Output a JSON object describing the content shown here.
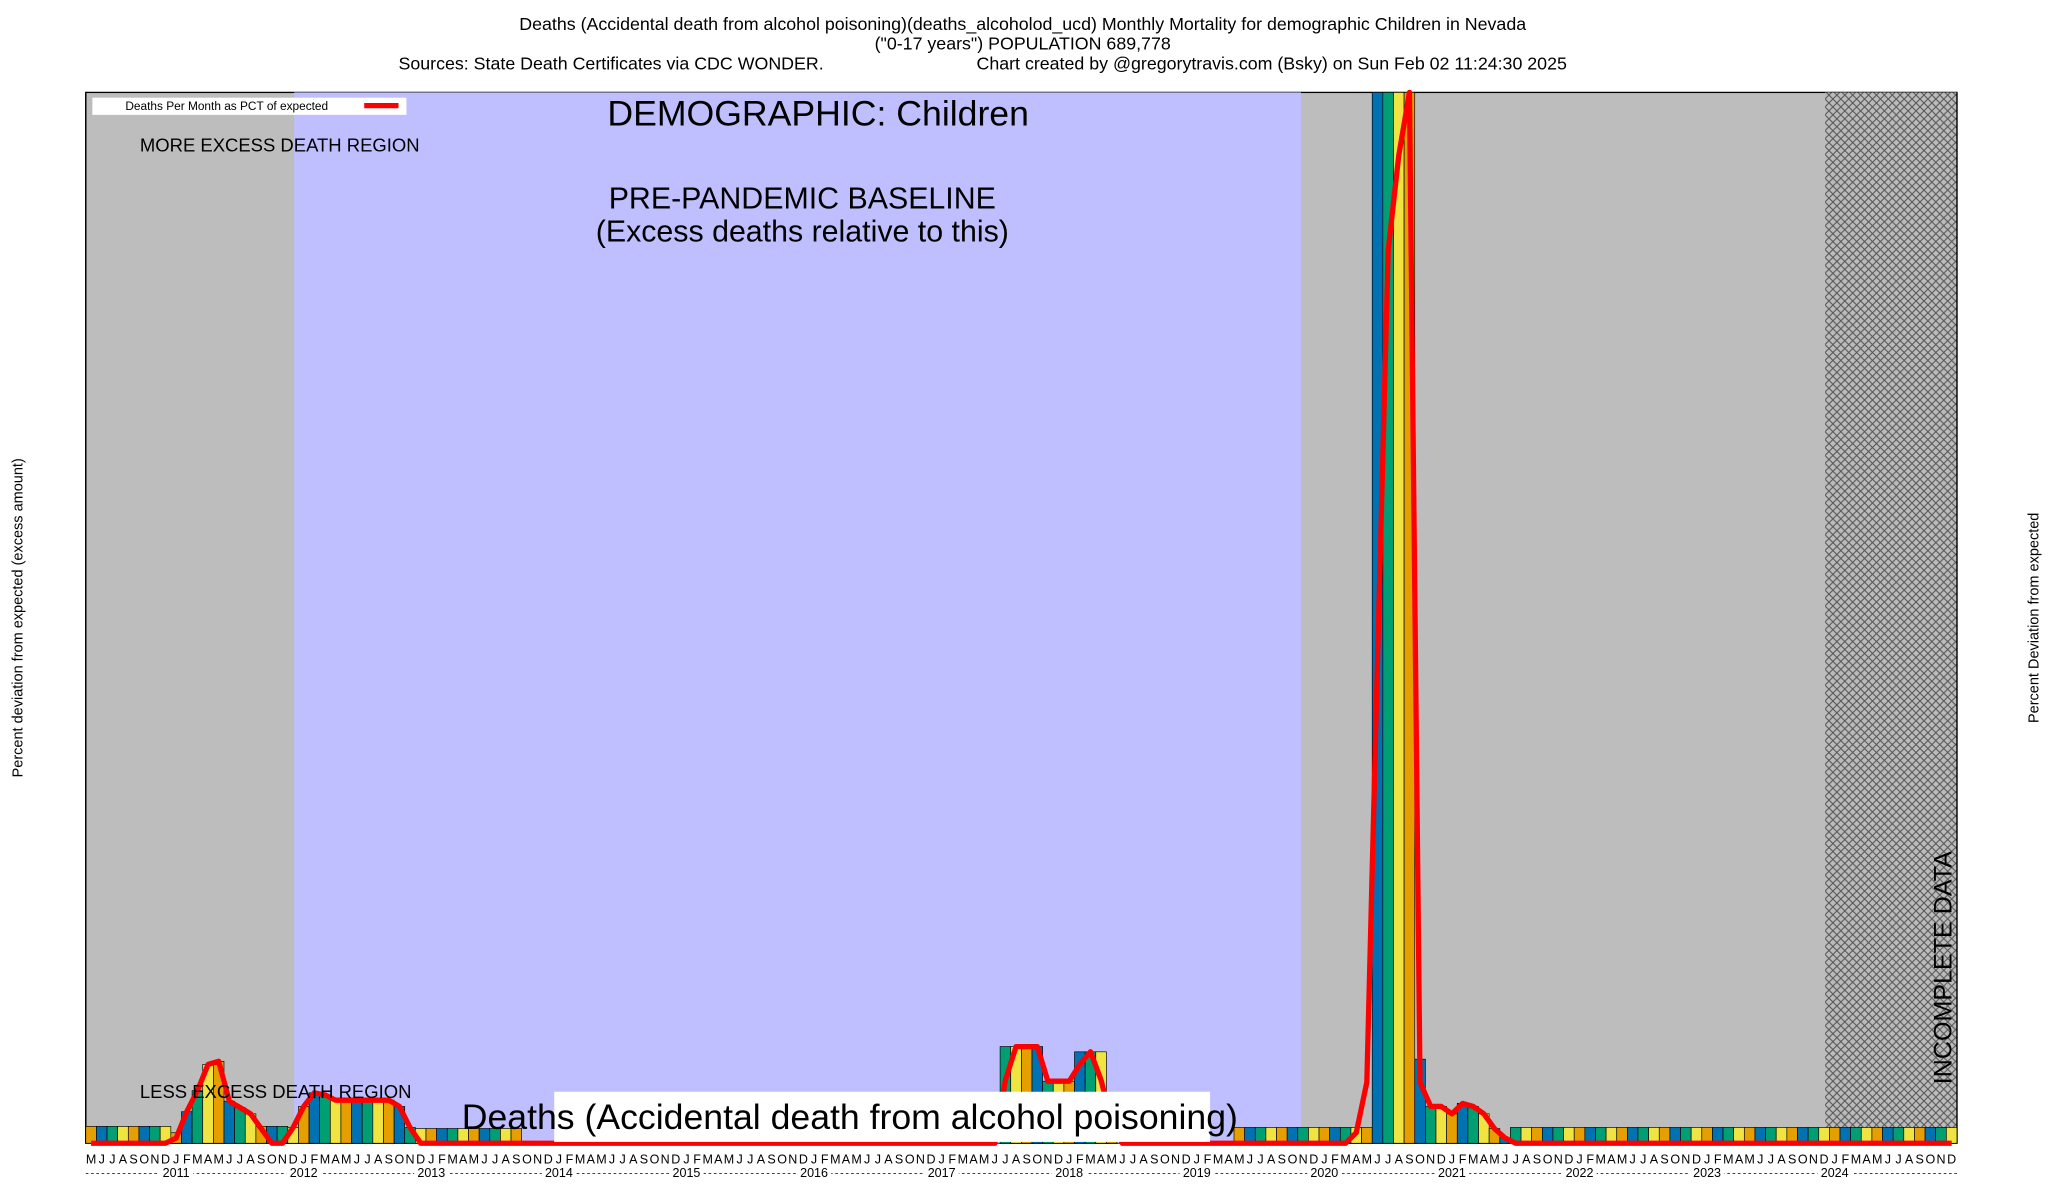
{
  "chart_data": {
    "type": "bar-line",
    "title": "Deaths (Accidental death from alcohol poisoning)(deaths_alcoholod_ucd) Monthly Mortality for demographic Children in Nevada",
    "subtitle": "(\"0-17 years\") POPULATION 689,778",
    "source": "Sources: State Death Certificates via CDC WONDER.",
    "credit": "Chart created by @gregorytravis.com (Bsky) on Sun Feb 02 11:24:30 2025",
    "demographic": "DEMOGRAPHIC: Children",
    "more_region": "MORE EXCESS DEATH REGION",
    "less_region": "LESS EXCESS DEATH REGION",
    "baseline_title": "PRE-PANDEMIC BASELINE",
    "baseline_note": "(Excess deaths relative to this)",
    "incomplete": "INCOMPLETE DATA",
    "cause_label": "Deaths (Accidental death from alcohol poisoning)",
    "y_label": "Percent deviation from expected (excess amount)",
    "y2_label": "Percent Deviation from expected",
    "years": [
      "2011",
      "2012",
      "2013",
      "2014",
      "2015",
      "2016",
      "2017",
      "2018",
      "2019",
      "2020",
      "2021",
      "2022",
      "2023",
      "2024"
    ],
    "categories": [
      "M",
      "J",
      "J",
      "A",
      "S",
      "O",
      "N",
      "D",
      "J",
      "F",
      "M",
      "A",
      "M",
      "J",
      "J",
      "A",
      "S",
      "O",
      "N",
      "D",
      "J",
      "F",
      "M",
      "A",
      "M",
      "J",
      "J",
      "A",
      "S",
      "O",
      "N",
      "D",
      "J",
      "F",
      "M",
      "A",
      "M",
      "J",
      "J",
      "A",
      "S",
      "O",
      "N",
      "D",
      "J",
      "F",
      "M",
      "A",
      "M",
      "J",
      "J",
      "A",
      "S",
      "O",
      "N",
      "D",
      "J",
      "F",
      "M",
      "A",
      "M",
      "J",
      "J",
      "A",
      "S",
      "O",
      "N",
      "D",
      "J",
      "F",
      "M",
      "A",
      "M",
      "J",
      "J",
      "A",
      "S",
      "O",
      "N",
      "D",
      "J",
      "F",
      "M",
      "A",
      "M",
      "J",
      "J",
      "A",
      "S",
      "O",
      "N",
      "D",
      "J",
      "F",
      "M",
      "A",
      "M",
      "J",
      "J",
      "A",
      "S",
      "O",
      "N",
      "D",
      "J",
      "F",
      "M",
      "A",
      "M",
      "J",
      "J",
      "A",
      "S",
      "O",
      "N",
      "D",
      "J",
      "F",
      "M",
      "A",
      "M",
      "J",
      "J",
      "A",
      "S",
      "O",
      "N",
      "D",
      "J",
      "F",
      "M",
      "A",
      "M",
      "J",
      "J",
      "A",
      "S",
      "O",
      "N",
      "D",
      "J",
      "F",
      "M",
      "A",
      "M",
      "J",
      "J",
      "A",
      "S",
      "O",
      "N",
      "D",
      "J",
      "F",
      "M",
      "A",
      "M",
      "J",
      "J",
      "A",
      "S",
      "O",
      "N",
      "D",
      "J",
      "F",
      "M",
      "A",
      "M",
      "J",
      "J",
      "A",
      "S",
      "O",
      "N",
      "D"
    ],
    "ylim": [
      0,
      1000
    ],
    "series": [
      {
        "name": "Deaths Per Month as PCT of expected",
        "color": "#ff0000",
        "values": [
          0,
          0,
          0,
          0,
          0,
          0,
          0,
          0,
          5,
          30,
          50,
          75,
          78,
          40,
          34,
          28,
          14,
          0,
          0,
          15,
          35,
          48,
          46,
          41,
          41,
          41,
          41,
          41,
          41,
          35,
          15,
          0,
          0,
          0,
          0,
          0,
          0,
          0,
          0,
          0,
          0,
          0,
          0,
          0,
          0,
          0,
          0,
          0,
          0,
          0,
          0,
          0,
          0,
          0,
          0,
          0,
          0,
          0,
          0,
          0,
          0,
          0,
          0,
          0,
          0,
          0,
          0,
          0,
          0,
          0,
          0,
          0,
          0,
          0,
          0,
          0,
          0,
          0,
          0,
          0,
          0,
          0,
          0,
          0,
          0,
          0,
          60,
          92,
          92,
          92,
          59,
          59,
          59,
          75,
          87,
          60,
          20,
          0,
          0,
          0,
          0,
          0,
          0,
          0,
          0,
          0,
          0,
          0,
          0,
          0,
          0,
          0,
          0,
          0,
          0,
          0,
          0,
          0,
          0,
          10,
          58,
          460,
          850,
          940,
          1000,
          58,
          35,
          35,
          28,
          38,
          35,
          28,
          14,
          5,
          0,
          0,
          0,
          0,
          0,
          0,
          0,
          0,
          0,
          0,
          0,
          0,
          0,
          0,
          0,
          0,
          0,
          0,
          0,
          0,
          0,
          0,
          0,
          0,
          0,
          0,
          0,
          0,
          0,
          0,
          0,
          0,
          0,
          0,
          0,
          0,
          0,
          0,
          0,
          0,
          0,
          0
        ]
      }
    ],
    "bars": {
      "colors": [
        "#e69f00",
        "#0072b2",
        "#009e73",
        "#f0e442"
      ],
      "values": [
        16,
        16,
        16,
        16,
        16,
        16,
        16,
        16,
        10,
        30,
        50,
        75,
        78,
        40,
        34,
        28,
        16,
        16,
        16,
        15,
        35,
        48,
        46,
        41,
        41,
        41,
        41,
        41,
        41,
        35,
        15,
        14,
        14,
        14,
        14,
        14,
        14,
        14,
        14,
        14,
        14,
        0,
        0,
        0,
        0,
        0,
        0,
        0,
        0,
        0,
        0,
        0,
        0,
        0,
        0,
        0,
        0,
        0,
        0,
        0,
        0,
        0,
        0,
        0,
        0,
        0,
        0,
        0,
        0,
        0,
        0,
        0,
        0,
        0,
        0,
        0,
        0,
        0,
        0,
        0,
        0,
        0,
        0,
        0,
        0,
        0,
        92,
        92,
        92,
        92,
        59,
        59,
        59,
        87,
        87,
        87,
        20,
        0,
        0,
        0,
        0,
        0,
        0,
        0,
        0,
        0,
        0,
        0,
        15,
        15,
        15,
        15,
        15,
        15,
        15,
        15,
        15,
        15,
        15,
        15,
        15,
        1000,
        1000,
        1000,
        1000,
        80,
        35,
        35,
        28,
        38,
        35,
        28,
        14,
        5,
        15,
        15,
        15,
        15,
        15,
        15,
        15,
        15,
        15,
        15,
        15,
        15,
        15,
        15,
        15,
        15,
        15,
        15,
        15,
        15,
        15,
        15,
        15,
        15,
        15,
        15,
        15,
        15,
        15,
        15,
        15,
        15,
        15,
        15,
        15,
        15,
        15,
        15,
        15,
        15,
        15,
        15
      ]
    }
  }
}
